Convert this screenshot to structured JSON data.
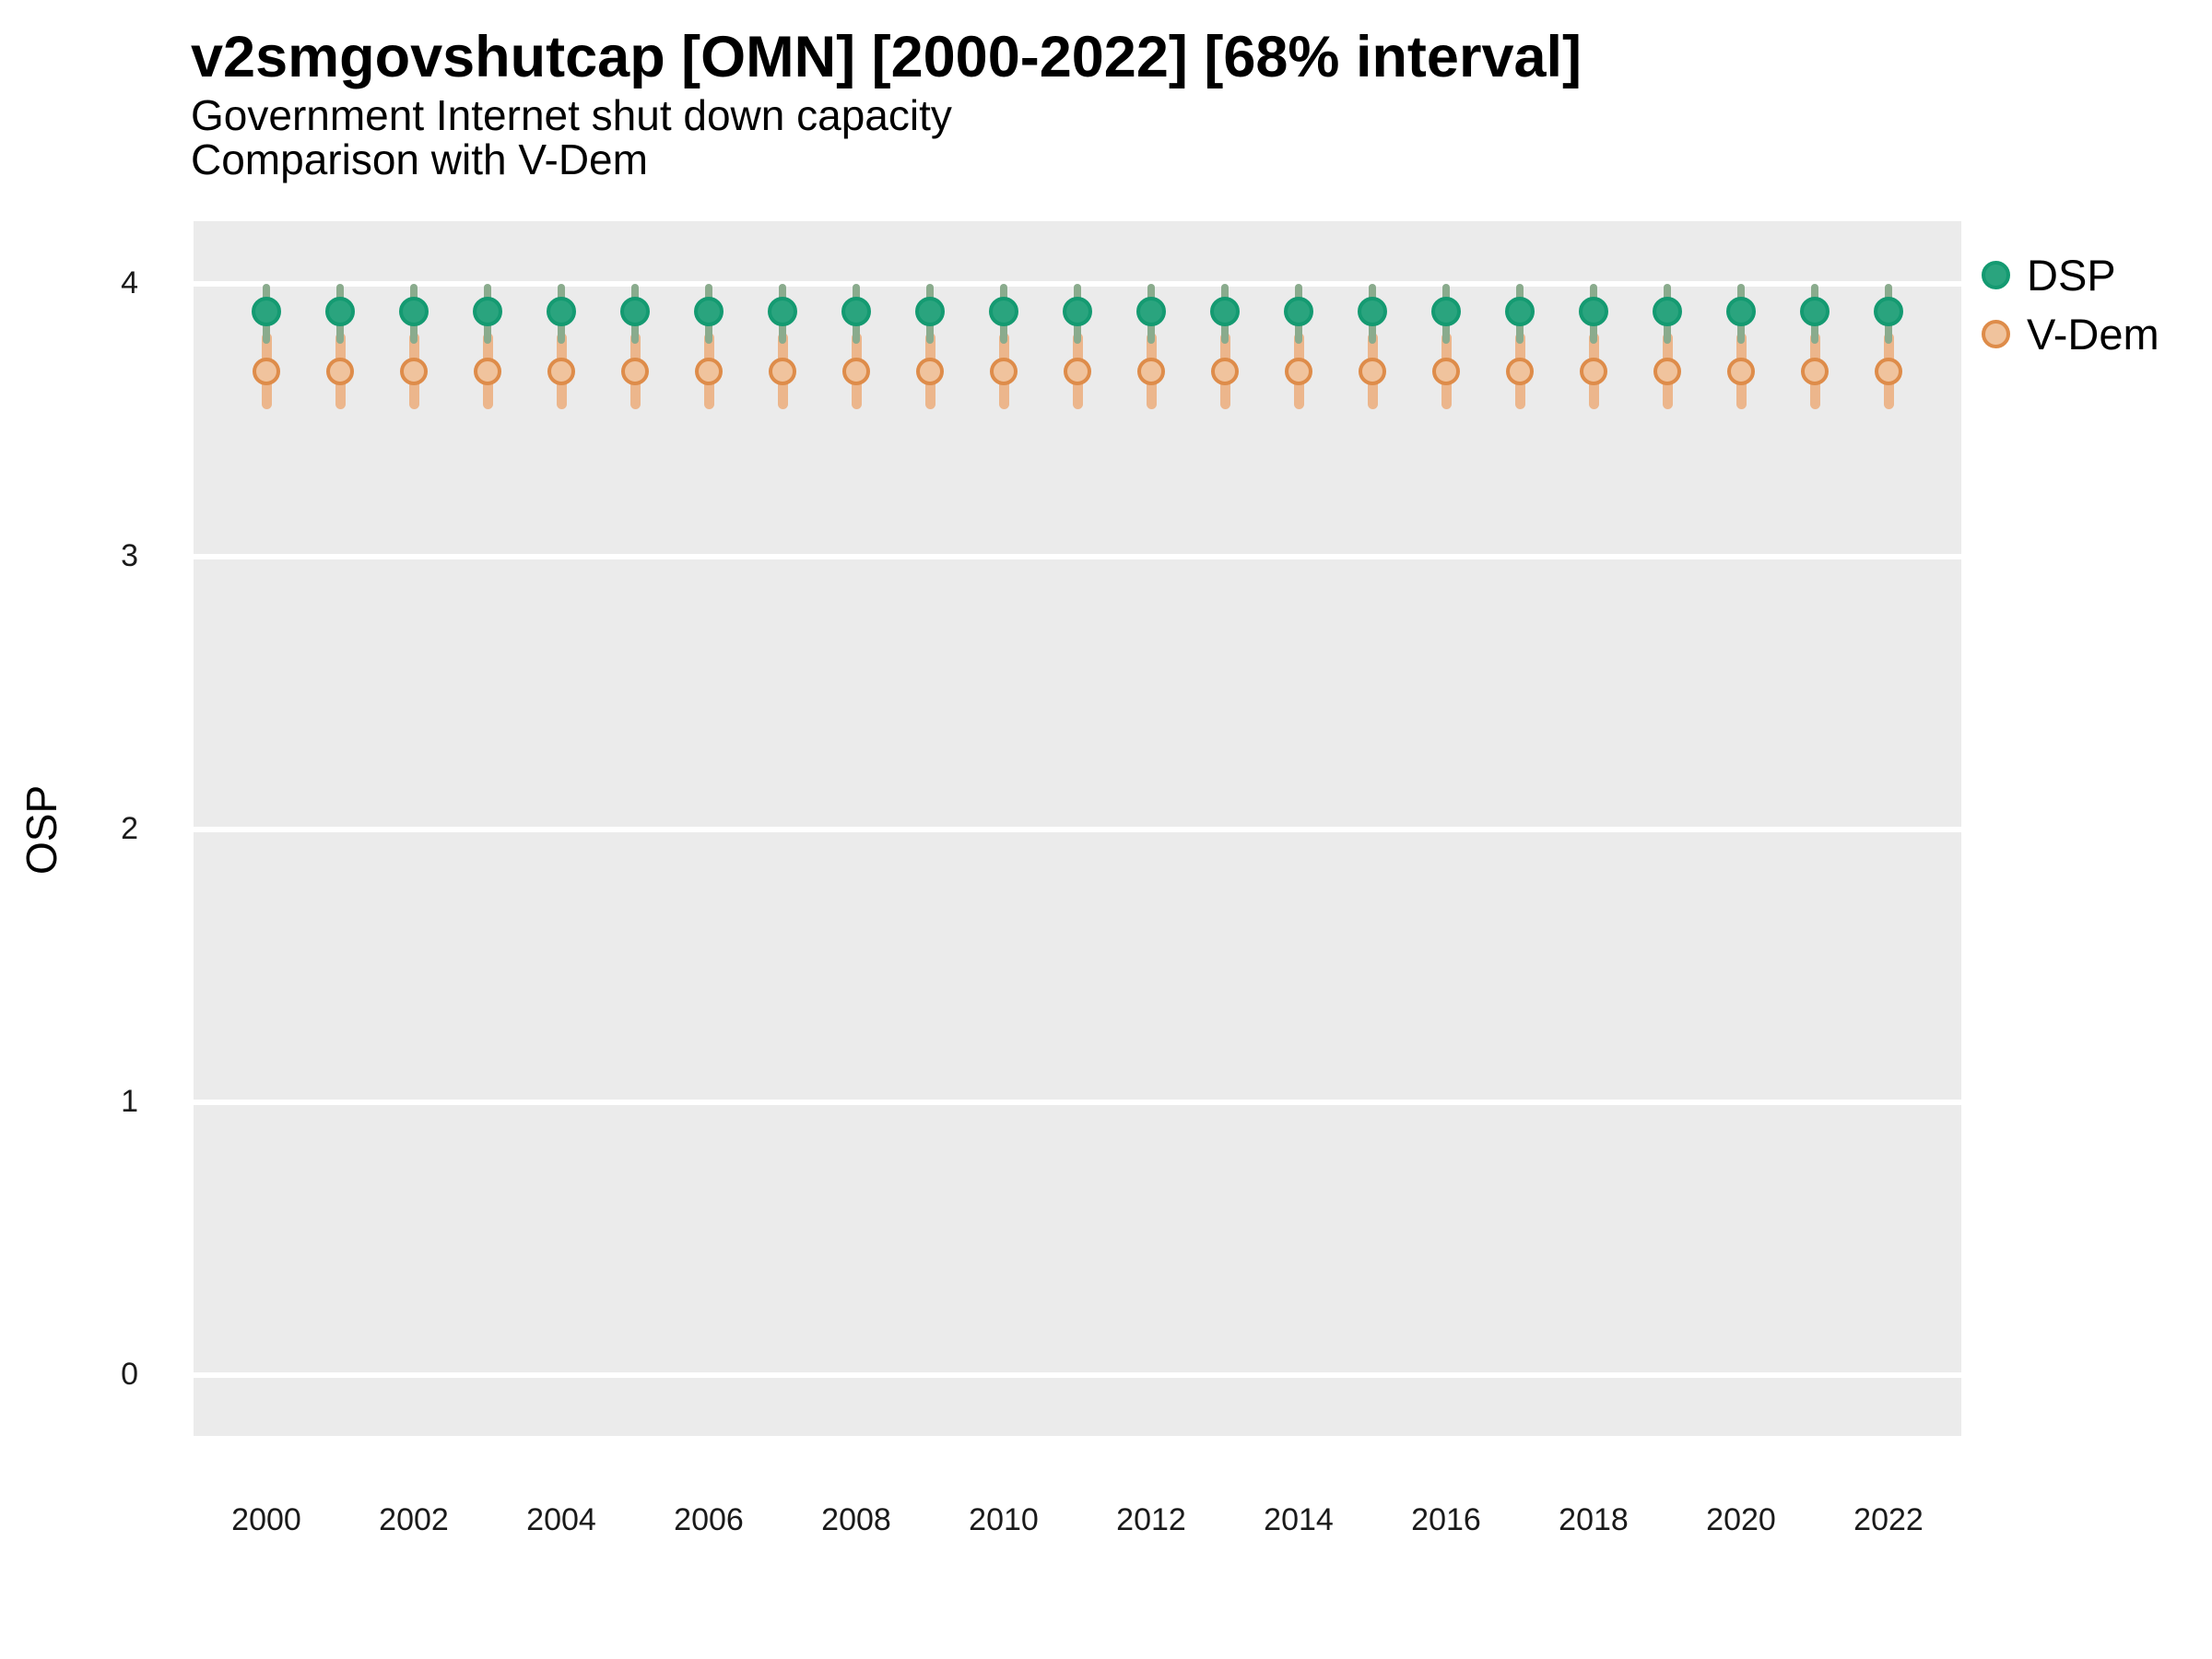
{
  "chart_data": {
    "type": "pointrange",
    "title": "v2smgovshutcap [OMN] [2000-2022] [68% interval]",
    "subtitle": "Government Internet shut down capacity",
    "subtitle2": "Comparison with V-Dem",
    "ylabel": "OSP",
    "xlabel": "",
    "interval": "68%",
    "ylim": [
      0,
      4
    ],
    "yticks": [
      0,
      1,
      2,
      3,
      4
    ],
    "xticks": [
      2000,
      2002,
      2004,
      2006,
      2008,
      2010,
      2012,
      2014,
      2016,
      2018,
      2020,
      2022
    ],
    "years": [
      2000,
      2001,
      2002,
      2003,
      2004,
      2005,
      2006,
      2007,
      2008,
      2009,
      2010,
      2011,
      2012,
      2013,
      2014,
      2015,
      2016,
      2017,
      2018,
      2019,
      2020,
      2021,
      2022
    ],
    "legend_position": "right",
    "grid": "major-horizontal-only",
    "series": [
      {
        "name": "DSP",
        "values": [
          3.9,
          3.9,
          3.9,
          3.9,
          3.9,
          3.9,
          3.9,
          3.9,
          3.9,
          3.9,
          3.9,
          3.9,
          3.9,
          3.9,
          3.9,
          3.9,
          3.9,
          3.9,
          3.9,
          3.9,
          3.9,
          3.9,
          3.9
        ],
        "lower": [
          3.78,
          3.78,
          3.78,
          3.78,
          3.78,
          3.78,
          3.78,
          3.78,
          3.78,
          3.78,
          3.78,
          3.78,
          3.78,
          3.78,
          3.78,
          3.78,
          3.78,
          3.78,
          3.78,
          3.78,
          3.78,
          3.78,
          3.78
        ],
        "upper": [
          4.0,
          4.0,
          4.0,
          4.0,
          4.0,
          4.0,
          4.0,
          4.0,
          4.0,
          4.0,
          4.0,
          4.0,
          4.0,
          4.0,
          4.0,
          4.0,
          4.0,
          4.0,
          4.0,
          4.0,
          4.0,
          4.0,
          4.0
        ],
        "dot_fill": "#2aa47e",
        "dot_stroke": "#149a71",
        "bar_color": "#8aab8d"
      },
      {
        "name": "V-Dem",
        "values": [
          3.68,
          3.68,
          3.68,
          3.68,
          3.68,
          3.68,
          3.68,
          3.68,
          3.68,
          3.68,
          3.68,
          3.68,
          3.68,
          3.68,
          3.68,
          3.68,
          3.68,
          3.68,
          3.68,
          3.68,
          3.68,
          3.68,
          3.68
        ],
        "lower": [
          3.54,
          3.54,
          3.54,
          3.54,
          3.54,
          3.54,
          3.54,
          3.54,
          3.54,
          3.54,
          3.54,
          3.54,
          3.54,
          3.54,
          3.54,
          3.54,
          3.54,
          3.54,
          3.54,
          3.54,
          3.54,
          3.54,
          3.54
        ],
        "upper": [
          3.82,
          3.82,
          3.82,
          3.82,
          3.82,
          3.82,
          3.82,
          3.82,
          3.82,
          3.82,
          3.82,
          3.82,
          3.82,
          3.82,
          3.82,
          3.82,
          3.82,
          3.82,
          3.82,
          3.82,
          3.82,
          3.82,
          3.82
        ],
        "dot_fill": "#f0c39d",
        "dot_stroke": "#de8c4a",
        "bar_color": "#ecb68c"
      }
    ],
    "colors": {
      "panel_bg": "#ebebeb",
      "grid_color": "#ffffff",
      "background": "#ffffff",
      "text": "#000000"
    }
  }
}
